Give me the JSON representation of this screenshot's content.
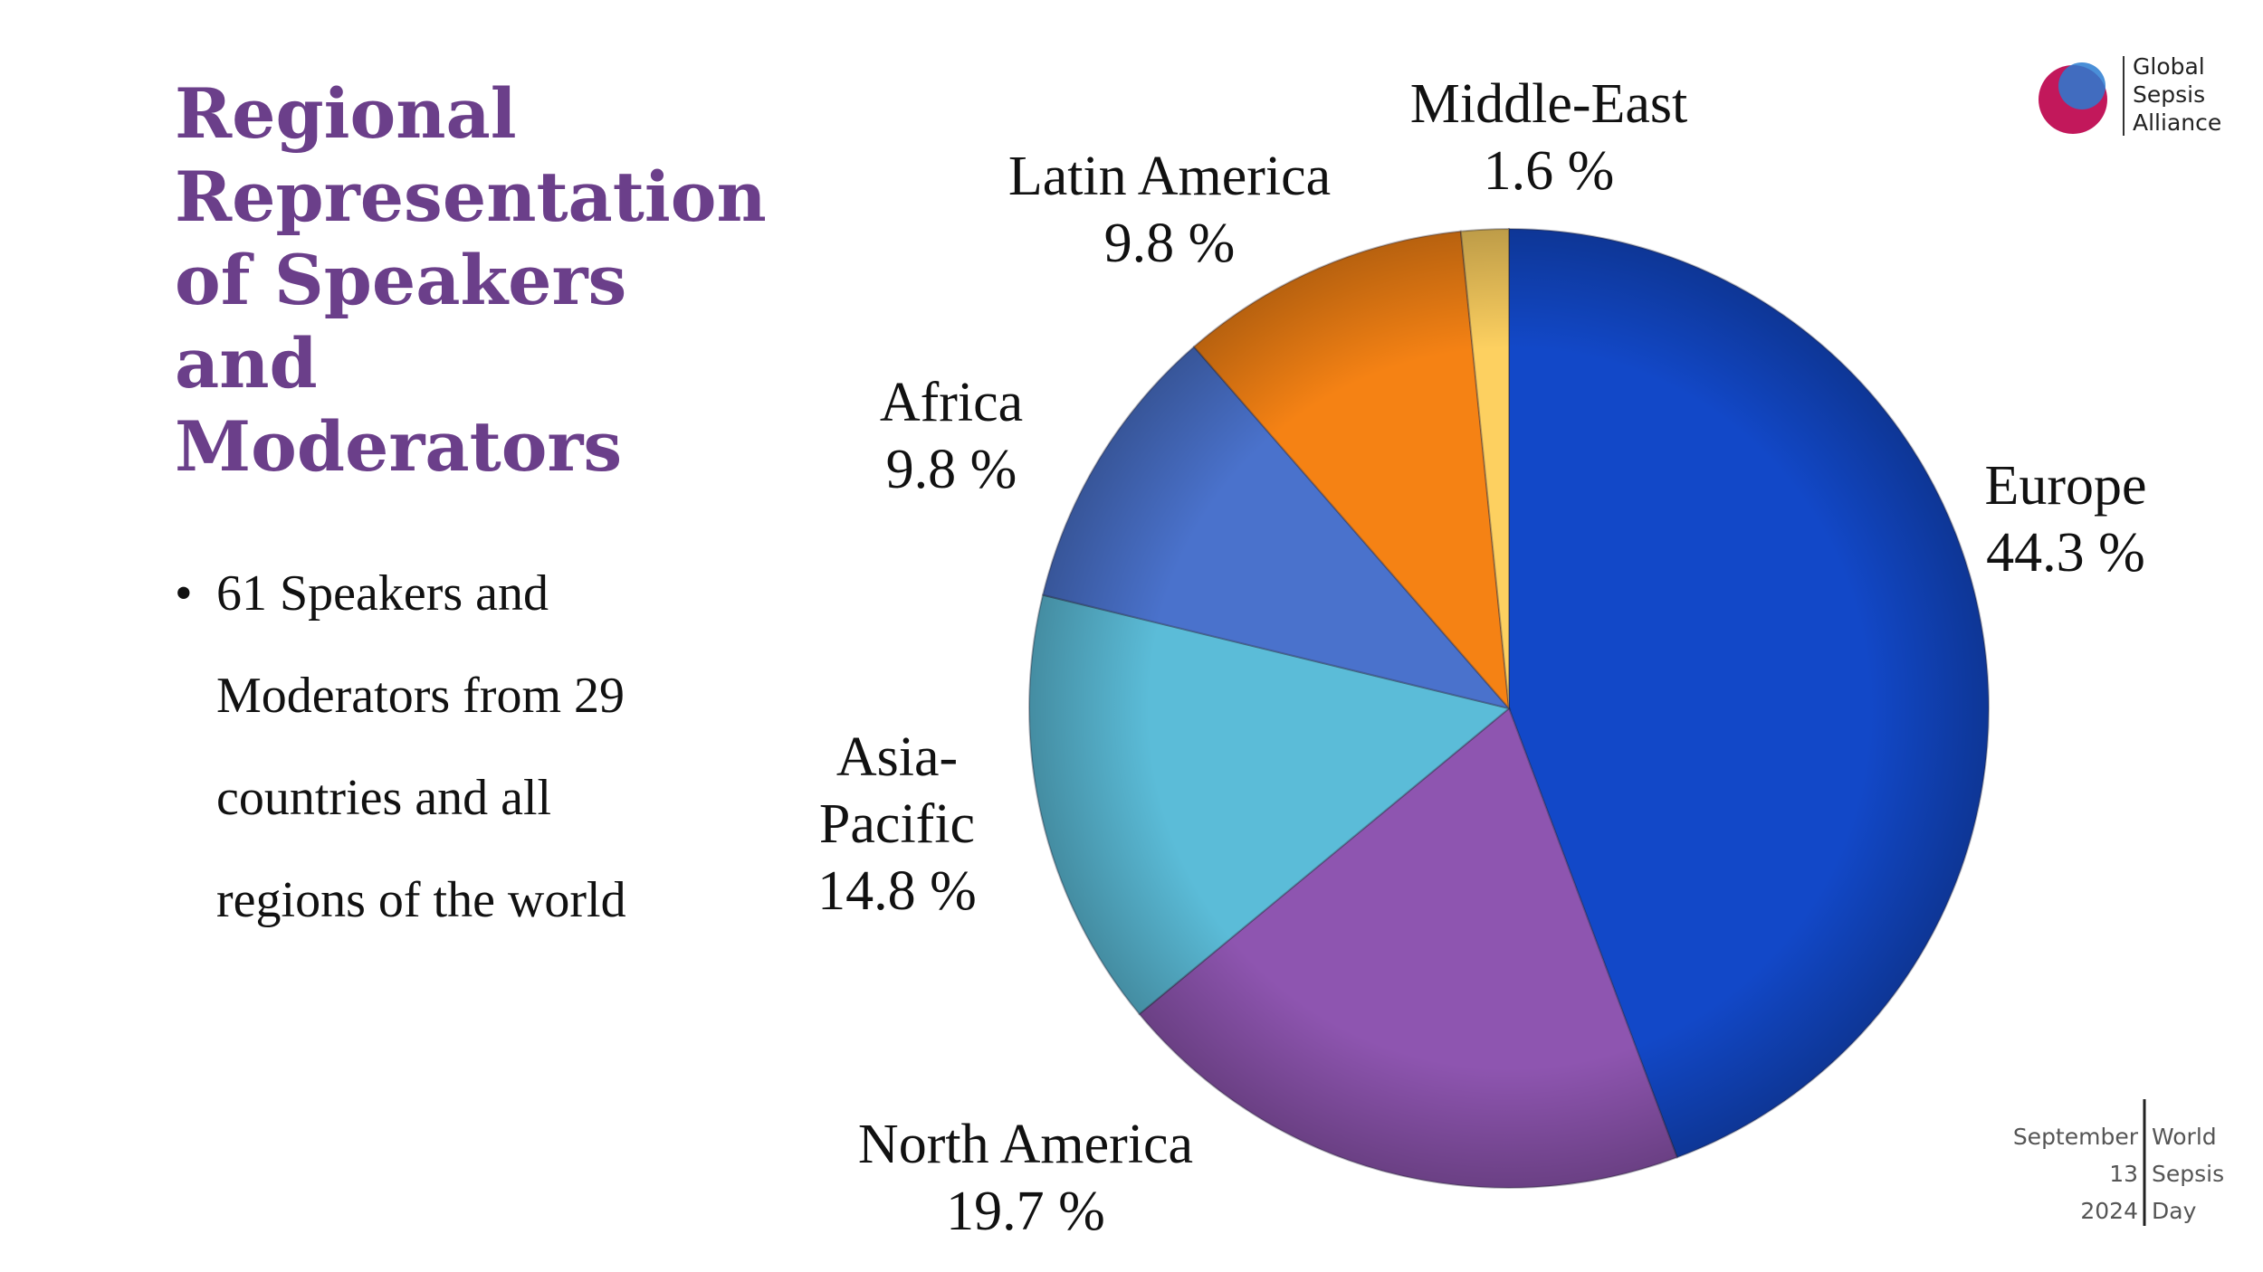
{
  "chart_data": {
    "type": "pie",
    "categories": [
      "Europe",
      "North America",
      "Asia-Pacific",
      "Africa",
      "Latin America",
      "Middle-East"
    ],
    "values": [
      44.3,
      19.7,
      14.8,
      9.8,
      9.8,
      1.6
    ],
    "value_labels": [
      "44.3 %",
      "19.7 %",
      "14.8 %",
      "9.8 %",
      "9.8 %",
      "1.6 %"
    ],
    "colors": [
      "#1248c8",
      "#8e55b0",
      "#5bbcd8",
      "#4a72cc",
      "#f58214",
      "#fdd060"
    ]
  },
  "slide": {
    "title": "Regional Representation of Speakers and Moderators",
    "bullets": [
      "61 Speakers and Moderators from 29 countries and all regions of the world"
    ],
    "logo": [
      "Global",
      "Sepsis",
      "Alliance"
    ],
    "footer_left": [
      "September",
      "13",
      "2024"
    ],
    "footer_right": [
      "World",
      "Sepsis",
      "Day"
    ]
  }
}
